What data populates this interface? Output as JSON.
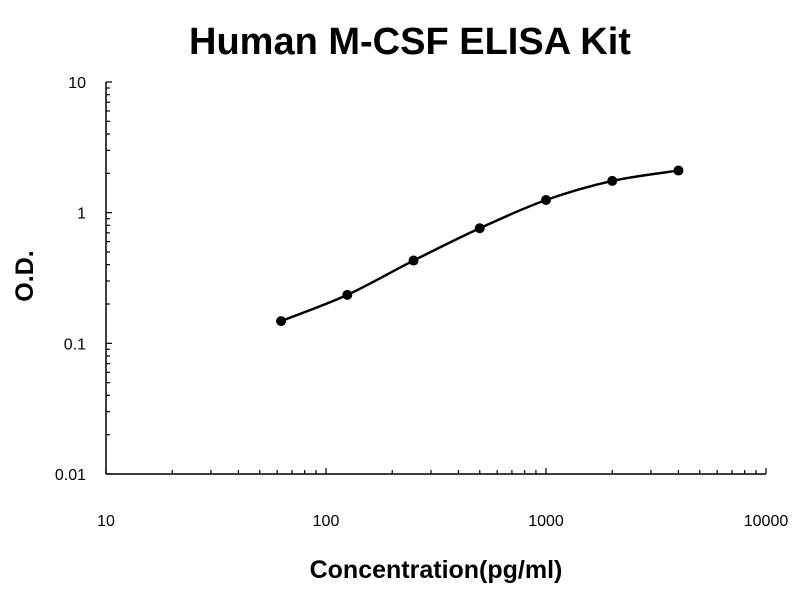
{
  "chart_data": {
    "type": "scatter",
    "title": "Human M-CSF ELISA Kit",
    "xlabel": "Concentration(pg/ml)",
    "ylabel": "O.D.",
    "x_scale": "log",
    "y_scale": "log",
    "xlim": [
      10,
      10000
    ],
    "ylim": [
      0.01,
      10
    ],
    "x_ticks": [
      "10",
      "100",
      "1000",
      "10000"
    ],
    "y_ticks": [
      "0.01",
      "0.1",
      "1",
      "10"
    ],
    "grid": false,
    "series": [
      {
        "x": [
          62.5,
          125,
          250,
          500,
          1000,
          2000,
          4000
        ],
        "y": [
          0.148,
          0.235,
          0.43,
          0.76,
          1.25,
          1.75,
          2.1
        ],
        "fit": "smooth-curve"
      }
    ]
  }
}
